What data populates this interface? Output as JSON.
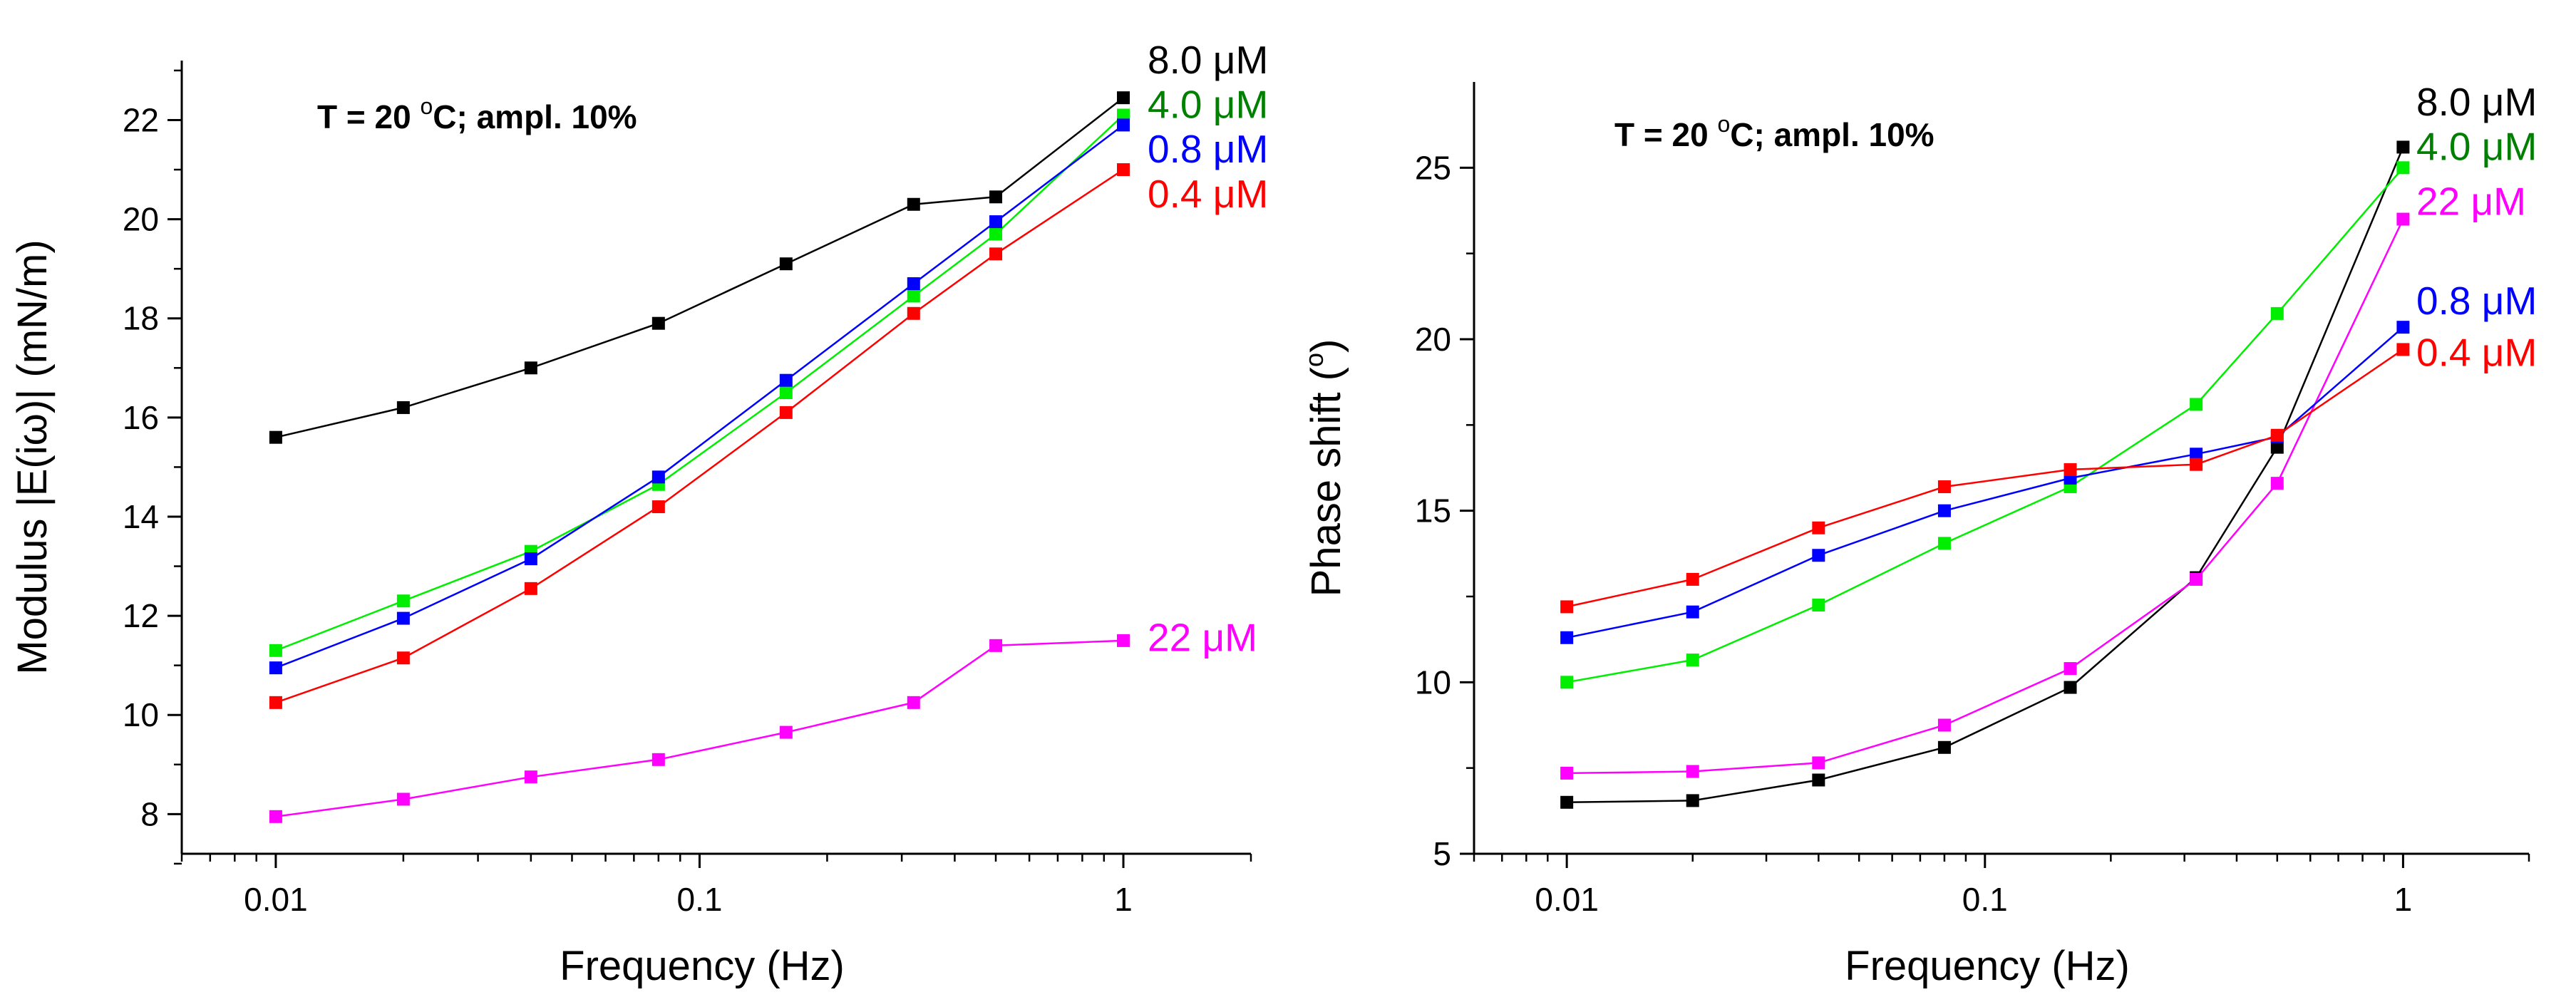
{
  "figure": {
    "charts_description": "two panels sharing frequency axis"
  },
  "chart_data": [
    {
      "type": "line",
      "id": "left",
      "title": "",
      "annotation": {
        "text_main": "T = 20 ",
        "text_sup": "o",
        "text_rest": "C;  ampl. 10%"
      },
      "xlabel": "Frequency (Hz)",
      "ylabel": "Modulus |E(iω)| (mN/m)",
      "xscale": "log",
      "xlim": [
        0.006,
        2
      ],
      "ylim": [
        7.2,
        23.2
      ],
      "xticks": [
        {
          "v": 0.01,
          "label": "0.01"
        },
        {
          "v": 0.1,
          "label": "0.1"
        },
        {
          "v": 1,
          "label": "1"
        }
      ],
      "yticks": [
        {
          "v": 8,
          "label": "8"
        },
        {
          "v": 10,
          "label": "10"
        },
        {
          "v": 12,
          "label": "12"
        },
        {
          "v": 14,
          "label": "14"
        },
        {
          "v": 16,
          "label": "16"
        },
        {
          "v": 18,
          "label": "18"
        },
        {
          "v": 20,
          "label": "20"
        },
        {
          "v": 22,
          "label": "22"
        }
      ],
      "yminor": [
        7,
        9,
        11,
        13,
        15,
        17,
        19,
        21,
        23
      ],
      "x": [
        0.01,
        0.02,
        0.04,
        0.08,
        0.16,
        0.32,
        0.5,
        1
      ],
      "series": [
        {
          "name": "8.0 μM",
          "num": "8.0 ",
          "unit": "μM",
          "color": "#000000",
          "values": [
            15.6,
            16.2,
            17.0,
            17.9,
            19.1,
            20.3,
            20.45,
            22.45
          ]
        },
        {
          "name": "4.0 μM",
          "num": "4.0 ",
          "unit": "μM",
          "color": "#00ee00",
          "label_color": "#008000",
          "values": [
            11.3,
            12.3,
            13.3,
            14.65,
            16.5,
            18.45,
            19.7,
            22.1
          ]
        },
        {
          "name": "0.8 μM",
          "num": "0.8 ",
          "unit": "μM",
          "color": "#0000ff",
          "values": [
            10.95,
            11.95,
            13.15,
            14.8,
            16.75,
            18.7,
            19.95,
            21.9
          ]
        },
        {
          "name": "0.4 μM",
          "num": "0.4 ",
          "unit": "μM",
          "color": "#ff0000",
          "values": [
            10.25,
            11.15,
            12.55,
            14.2,
            16.1,
            18.1,
            19.3,
            21.0
          ]
        },
        {
          "name": "22 μM",
          "num": "22 ",
          "unit": "μM",
          "color": "#ff00ff",
          "values": [
            7.95,
            8.3,
            8.75,
            9.1,
            9.65,
            10.25,
            11.4,
            11.5
          ]
        }
      ],
      "legend": [
        {
          "series": 0,
          "near_value": 23.2
        },
        {
          "series": 1,
          "near_value": 22.3
        },
        {
          "series": 2,
          "near_value": 21.4
        },
        {
          "series": 3,
          "near_value": 20.5
        },
        {
          "series": 4,
          "near_value": 11.55
        }
      ]
    },
    {
      "type": "line",
      "id": "right",
      "title": "",
      "annotation": {
        "text_main": "T = 20 ",
        "text_sup": "o",
        "text_rest": "C;  ampl. 10%"
      },
      "xlabel": "Frequency (Hz)",
      "ylabel_main": "Phase shift (",
      "ylabel_sup": "o",
      "ylabel_end": ")",
      "xscale": "log",
      "xlim": [
        0.006,
        2
      ],
      "ylim": [
        5,
        27.5
      ],
      "xticks": [
        {
          "v": 0.01,
          "label": "0.01"
        },
        {
          "v": 0.1,
          "label": "0.1"
        },
        {
          "v": 1,
          "label": "1"
        }
      ],
      "yticks": [
        {
          "v": 5,
          "label": "5"
        },
        {
          "v": 10,
          "label": "10"
        },
        {
          "v": 15,
          "label": "15"
        },
        {
          "v": 20,
          "label": "20"
        },
        {
          "v": 25,
          "label": "25"
        }
      ],
      "yminor": [
        7.5,
        12.5,
        17.5,
        22.5
      ],
      "x": [
        0.01,
        0.02,
        0.04,
        0.08,
        0.16,
        0.32,
        0.5,
        1
      ],
      "series": [
        {
          "name": "8.0 μM",
          "num": "8.0 ",
          "unit": "μM",
          "color": "#000000",
          "values": [
            6.5,
            6.55,
            7.15,
            8.1,
            9.85,
            13.05,
            16.85,
            25.6
          ]
        },
        {
          "name": "4.0 μM",
          "num": "4.0 ",
          "unit": "μM",
          "color": "#00ee00",
          "label_color": "#008000",
          "values": [
            10.0,
            10.65,
            12.25,
            14.05,
            15.7,
            18.1,
            20.75,
            25.0
          ]
        },
        {
          "name": "22 μM",
          "num": "22 ",
          "unit": "μM",
          "color": "#ff00ff",
          "values": [
            7.35,
            7.4,
            7.65,
            8.75,
            10.4,
            13.0,
            15.8,
            23.5
          ]
        },
        {
          "name": "0.8 μM",
          "num": "0.8 ",
          "unit": "μM",
          "color": "#0000ff",
          "values": [
            11.3,
            12.05,
            13.7,
            15.0,
            15.95,
            16.65,
            17.15,
            20.35
          ]
        },
        {
          "name": "0.4 μM",
          "num": "0.4 ",
          "unit": "μM",
          "color": "#ff0000",
          "values": [
            12.2,
            13.0,
            14.5,
            15.7,
            16.2,
            16.35,
            17.2,
            19.7
          ]
        }
      ],
      "legend": [
        {
          "series": 0,
          "near_value": 26.9
        },
        {
          "series": 1,
          "near_value": 25.6
        },
        {
          "series": 2,
          "near_value": 24.0
        },
        {
          "series": 3,
          "near_value": 21.1
        },
        {
          "series": 4,
          "near_value": 19.6
        }
      ]
    }
  ]
}
